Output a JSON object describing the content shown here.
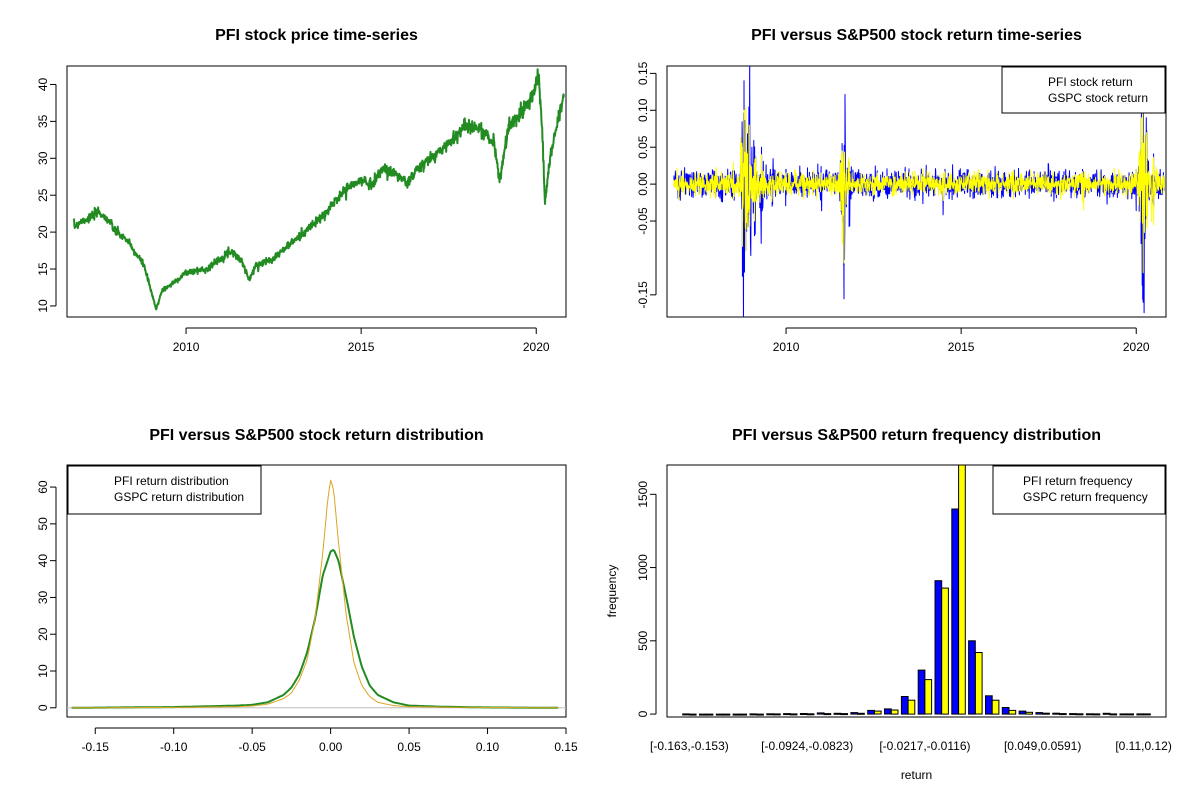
{
  "colors": {
    "price": "#228b22",
    "pfi_return": "#0000ff",
    "gspc_return": "#ffff00",
    "pfi_density": "#228b22",
    "gspc_density": "#daa520",
    "pfi_hist": "#0000ff",
    "gspc_hist": "#ffff00"
  },
  "chart_data": [
    {
      "type": "line",
      "title": "PFI stock price time-series",
      "xlabel": "",
      "ylabel": "",
      "xlim": [
        2006.6,
        2020.85
      ],
      "ylim": [
        8.5,
        42.5
      ],
      "x_ticks": [
        "2010",
        "2015",
        "2020"
      ],
      "y_ticks": [
        "10",
        "15",
        "20",
        "25",
        "30",
        "35",
        "40"
      ],
      "series": [
        {
          "x": [
            2006.8,
            2007.0,
            2007.3,
            2007.5,
            2007.8,
            2008.0,
            2008.3,
            2008.5,
            2008.8,
            2009.0,
            2009.15,
            2009.3,
            2009.6,
            2010.0,
            2010.3,
            2010.6,
            2011.0,
            2011.3,
            2011.6,
            2011.8,
            2012.0,
            2012.5,
            2013.0,
            2013.5,
            2014.0,
            2014.3,
            2014.6,
            2015.0,
            2015.3,
            2015.6,
            2016.0,
            2016.3,
            2016.6,
            2017.0,
            2017.5,
            2018.0,
            2018.4,
            2018.8,
            2018.95,
            2019.2,
            2019.6,
            2019.9,
            2020.05,
            2020.15,
            2020.25,
            2020.4,
            2020.6,
            2020.8
          ],
          "y": [
            20.7,
            21.5,
            22.0,
            22.8,
            21.5,
            20.0,
            19.0,
            17.5,
            15.5,
            12.0,
            9.5,
            12.0,
            13.0,
            14.5,
            14.8,
            15.0,
            16.5,
            17.5,
            16.0,
            13.5,
            15.5,
            16.5,
            18.5,
            20.5,
            22.5,
            24.5,
            26.0,
            27.0,
            26.5,
            28.5,
            28.0,
            26.5,
            28.5,
            30.0,
            32.0,
            34.5,
            34.0,
            32.0,
            27.0,
            34.0,
            36.5,
            38.5,
            41.5,
            36.0,
            24.0,
            30.0,
            35.0,
            38.5
          ]
        }
      ]
    },
    {
      "type": "line",
      "title": "PFI versus S&P500 stock return time-series",
      "xlabel": "",
      "ylabel": "",
      "xlim": [
        2006.6,
        2020.85
      ],
      "ylim": [
        -0.18,
        0.16
      ],
      "x_ticks": [
        "2010",
        "2015",
        "2020"
      ],
      "y_ticks": [
        "-0.15",
        "-0.05",
        "0.00",
        "0.05",
        "0.10",
        "0.15"
      ],
      "legend_position": "top-right",
      "series": [
        {
          "name": "PFI stock return",
          "x": [
            2006.8,
            2007.5,
            2008.0,
            2008.5,
            2008.75,
            2008.8,
            2008.85,
            2008.95,
            2009.1,
            2009.3,
            2009.6,
            2010.0,
            2010.5,
            2011.0,
            2011.6,
            2011.65,
            2011.8,
            2012.5,
            2013.5,
            2014.5,
            2015.5,
            2016.5,
            2017.5,
            2018.5,
            2019.5,
            2020.0,
            2020.15,
            2020.2,
            2020.3,
            2020.5,
            2020.8
          ],
          "y": [
            0.005,
            -0.01,
            0.02,
            -0.02,
            0.06,
            0.14,
            -0.09,
            0.1,
            -0.07,
            0.05,
            -0.03,
            0.02,
            -0.015,
            0.02,
            0.055,
            -0.095,
            0.03,
            -0.02,
            0.015,
            -0.02,
            0.015,
            -0.015,
            0.02,
            -0.02,
            0.015,
            0.02,
            0.065,
            -0.16,
            0.04,
            -0.03,
            0.01
          ]
        },
        {
          "name": "GSPC stock return",
          "x": [
            2006.8,
            2007.5,
            2008.0,
            2008.5,
            2008.75,
            2008.8,
            2008.85,
            2008.95,
            2009.1,
            2009.3,
            2009.6,
            2010.0,
            2010.5,
            2011.0,
            2011.6,
            2011.65,
            2011.8,
            2012.5,
            2013.5,
            2014.5,
            2015.5,
            2016.5,
            2017.5,
            2018.5,
            2019.5,
            2020.0,
            2020.15,
            2020.2,
            2020.3,
            2020.5,
            2020.8
          ],
          "y": [
            0.005,
            -0.015,
            0.02,
            -0.02,
            0.05,
            0.1,
            -0.09,
            0.08,
            -0.05,
            0.04,
            -0.02,
            0.015,
            -0.02,
            0.015,
            0.045,
            -0.065,
            0.03,
            -0.015,
            0.01,
            -0.015,
            0.02,
            -0.02,
            0.01,
            -0.035,
            0.02,
            0.015,
            0.09,
            -0.12,
            0.07,
            -0.055,
            0.01
          ]
        }
      ]
    },
    {
      "type": "line",
      "title": "PFI versus S&P500 stock return distribution",
      "xlabel": "",
      "ylabel": "",
      "xlim": [
        -0.168,
        0.15
      ],
      "ylim": [
        -2.5,
        66
      ],
      "x_ticks": [
        "-0.15",
        "-0.10",
        "-0.05",
        "0.00",
        "0.05",
        "0.10",
        "0.15"
      ],
      "y_ticks": [
        "0",
        "10",
        "20",
        "30",
        "40",
        "50",
        "60"
      ],
      "legend_position": "top-left",
      "series": [
        {
          "name": "PFI return distribution",
          "x": [
            -0.165,
            -0.1,
            -0.06,
            -0.05,
            -0.04,
            -0.03,
            -0.025,
            -0.02,
            -0.015,
            -0.01,
            -0.005,
            0.0,
            0.002,
            0.005,
            0.01,
            0.015,
            0.02,
            0.025,
            0.03,
            0.04,
            0.05,
            0.07,
            0.1,
            0.145
          ],
          "y": [
            0.0,
            0.2,
            0.6,
            0.8,
            1.5,
            3.5,
            5.5,
            9.0,
            15.0,
            24.0,
            36.0,
            42.5,
            43.0,
            40.0,
            30.0,
            19.0,
            11.0,
            6.0,
            3.5,
            1.5,
            0.6,
            0.3,
            0.1,
            0.0
          ]
        },
        {
          "name": "GSPC return distribution",
          "x": [
            -0.165,
            -0.1,
            -0.06,
            -0.05,
            -0.04,
            -0.03,
            -0.025,
            -0.02,
            -0.015,
            -0.01,
            -0.005,
            -0.002,
            0.0,
            0.002,
            0.005,
            0.01,
            0.015,
            0.02,
            0.025,
            0.03,
            0.04,
            0.05,
            0.07,
            0.1,
            0.145
          ],
          "y": [
            0.0,
            0.1,
            0.3,
            0.5,
            1.0,
            2.5,
            4.0,
            7.5,
            13.0,
            24.0,
            42.0,
            56.0,
            62.0,
            59.0,
            45.0,
            25.0,
            12.0,
            6.0,
            3.0,
            1.5,
            0.6,
            0.3,
            0.2,
            0.1,
            0.0
          ]
        }
      ]
    },
    {
      "type": "bar",
      "title": "PFI versus S&P500 return frequency distribution",
      "xlabel": "return",
      "ylabel": "frequency",
      "ylim": [
        -20,
        1700
      ],
      "y_ticks": [
        "0",
        "500",
        "1000",
        "1500"
      ],
      "x_tick_labels": [
        "[-0.163,-0.153)",
        "[-0.0924,-0.0823)",
        "[-0.0217,-0.0116)",
        "[0.049,0.0591)",
        "[0.11,0.12)"
      ],
      "legend_position": "top-right",
      "series": [
        {
          "name": "PFI return frequency",
          "values": [
            1,
            0,
            0,
            0,
            1,
            2,
            3,
            4,
            8,
            5,
            10,
            25,
            35,
            120,
            300,
            910,
            1400,
            500,
            125,
            45,
            20,
            10,
            6,
            3,
            2,
            5,
            1,
            1
          ]
        },
        {
          "name": "GSPC return frequency",
          "values": [
            0,
            0,
            0,
            0,
            0,
            1,
            1,
            2,
            3,
            3,
            5,
            20,
            28,
            95,
            235,
            860,
            1700,
            420,
            95,
            25,
            12,
            6,
            3,
            2,
            1,
            1,
            1,
            1
          ]
        }
      ]
    }
  ]
}
